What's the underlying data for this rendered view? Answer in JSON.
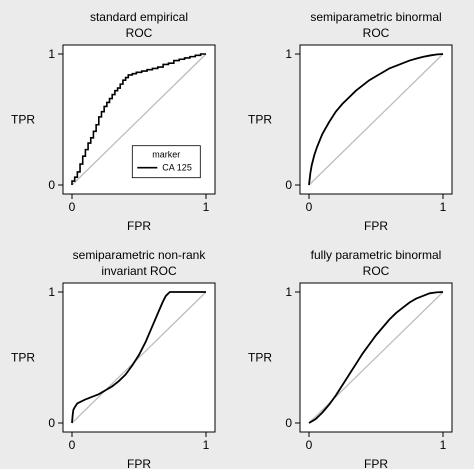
{
  "chart_data": [
    {
      "type": "line",
      "title": "standard empirical",
      "subtitle": "ROC",
      "xlabel": "FPR",
      "ylabel": "TPR",
      "xlim": [
        0,
        1
      ],
      "ylim": [
        0,
        1
      ],
      "x_ticks": [
        "0",
        "1"
      ],
      "y_ticks": [
        "0",
        "1"
      ],
      "step": true,
      "legend": {
        "title": "marker",
        "position": "bottom-right",
        "entries": [
          "CA 125"
        ]
      },
      "series": [
        {
          "name": "CA 125",
          "x": [
            0,
            0,
            0.02,
            0.02,
            0.04,
            0.04,
            0.06,
            0.06,
            0.08,
            0.08,
            0.1,
            0.1,
            0.12,
            0.12,
            0.14,
            0.14,
            0.16,
            0.16,
            0.18,
            0.18,
            0.2,
            0.2,
            0.22,
            0.22,
            0.24,
            0.24,
            0.26,
            0.26,
            0.28,
            0.28,
            0.3,
            0.3,
            0.32,
            0.32,
            0.34,
            0.34,
            0.36,
            0.36,
            0.38,
            0.38,
            0.4,
            0.4,
            0.42,
            0.42,
            0.45,
            0.45,
            0.48,
            0.48,
            0.52,
            0.52,
            0.56,
            0.56,
            0.6,
            0.6,
            0.64,
            0.64,
            0.68,
            0.68,
            0.72,
            0.72,
            0.76,
            0.76,
            0.8,
            0.8,
            0.84,
            0.84,
            0.88,
            0.88,
            0.92,
            0.92,
            0.96,
            0.96,
            1
          ],
          "y": [
            0,
            0.03,
            0.03,
            0.06,
            0.06,
            0.1,
            0.1,
            0.16,
            0.16,
            0.22,
            0.22,
            0.27,
            0.27,
            0.32,
            0.32,
            0.36,
            0.36,
            0.41,
            0.41,
            0.46,
            0.46,
            0.52,
            0.52,
            0.56,
            0.56,
            0.6,
            0.6,
            0.63,
            0.63,
            0.66,
            0.66,
            0.69,
            0.69,
            0.72,
            0.72,
            0.74,
            0.74,
            0.77,
            0.77,
            0.8,
            0.8,
            0.82,
            0.82,
            0.84,
            0.84,
            0.85,
            0.85,
            0.86,
            0.86,
            0.87,
            0.87,
            0.88,
            0.88,
            0.89,
            0.89,
            0.9,
            0.9,
            0.92,
            0.92,
            0.93,
            0.93,
            0.95,
            0.95,
            0.96,
            0.96,
            0.97,
            0.97,
            0.98,
            0.98,
            0.99,
            0.99,
            1,
            1
          ]
        }
      ]
    },
    {
      "type": "line",
      "title": "semiparametric binormal",
      "subtitle": "ROC",
      "xlabel": "FPR",
      "ylabel": "TPR",
      "xlim": [
        0,
        1
      ],
      "ylim": [
        0,
        1
      ],
      "x_ticks": [
        "0",
        "1"
      ],
      "y_ticks": [
        "0",
        "1"
      ],
      "series": [
        {
          "x": [
            0,
            0.01,
            0.02,
            0.04,
            0.06,
            0.08,
            0.1,
            0.15,
            0.2,
            0.25,
            0.3,
            0.35,
            0.4,
            0.45,
            0.5,
            0.55,
            0.6,
            0.65,
            0.7,
            0.75,
            0.8,
            0.85,
            0.9,
            0.95,
            1
          ],
          "y": [
            0,
            0.09,
            0.15,
            0.23,
            0.29,
            0.34,
            0.39,
            0.48,
            0.56,
            0.62,
            0.67,
            0.72,
            0.76,
            0.8,
            0.83,
            0.86,
            0.89,
            0.91,
            0.93,
            0.95,
            0.965,
            0.978,
            0.988,
            0.996,
            1
          ]
        }
      ]
    },
    {
      "type": "line",
      "title": "semiparametric non-rank",
      "subtitle": "invariant ROC",
      "xlabel": "FPR",
      "ylabel": "TPR",
      "xlim": [
        0,
        1
      ],
      "ylim": [
        0,
        1
      ],
      "x_ticks": [
        "0",
        "1"
      ],
      "y_ticks": [
        "0",
        "1"
      ],
      "series": [
        {
          "x": [
            0,
            0.005,
            0.01,
            0.02,
            0.04,
            0.06,
            0.1,
            0.15,
            0.2,
            0.25,
            0.3,
            0.35,
            0.4,
            0.45,
            0.5,
            0.55,
            0.6,
            0.65,
            0.68,
            0.7,
            0.73,
            0.75,
            1
          ],
          "y": [
            0,
            0.06,
            0.1,
            0.12,
            0.15,
            0.16,
            0.18,
            0.2,
            0.22,
            0.25,
            0.28,
            0.32,
            0.37,
            0.44,
            0.52,
            0.62,
            0.74,
            0.86,
            0.93,
            0.97,
            1,
            1,
            1
          ]
        }
      ]
    },
    {
      "type": "line",
      "title": "fully parametric binormal",
      "subtitle": "ROC",
      "xlabel": "FPR",
      "ylabel": "TPR",
      "xlim": [
        0,
        1
      ],
      "ylim": [
        0,
        1
      ],
      "x_ticks": [
        "0",
        "1"
      ],
      "y_ticks": [
        "0",
        "1"
      ],
      "series": [
        {
          "x": [
            0,
            0.05,
            0.1,
            0.15,
            0.2,
            0.25,
            0.3,
            0.35,
            0.4,
            0.45,
            0.5,
            0.55,
            0.6,
            0.65,
            0.7,
            0.75,
            0.8,
            0.85,
            0.9,
            0.95,
            1
          ],
          "y": [
            0,
            0.03,
            0.08,
            0.14,
            0.21,
            0.29,
            0.37,
            0.45,
            0.53,
            0.6,
            0.67,
            0.73,
            0.79,
            0.84,
            0.88,
            0.92,
            0.95,
            0.97,
            0.99,
            0.997,
            1
          ]
        }
      ]
    }
  ]
}
